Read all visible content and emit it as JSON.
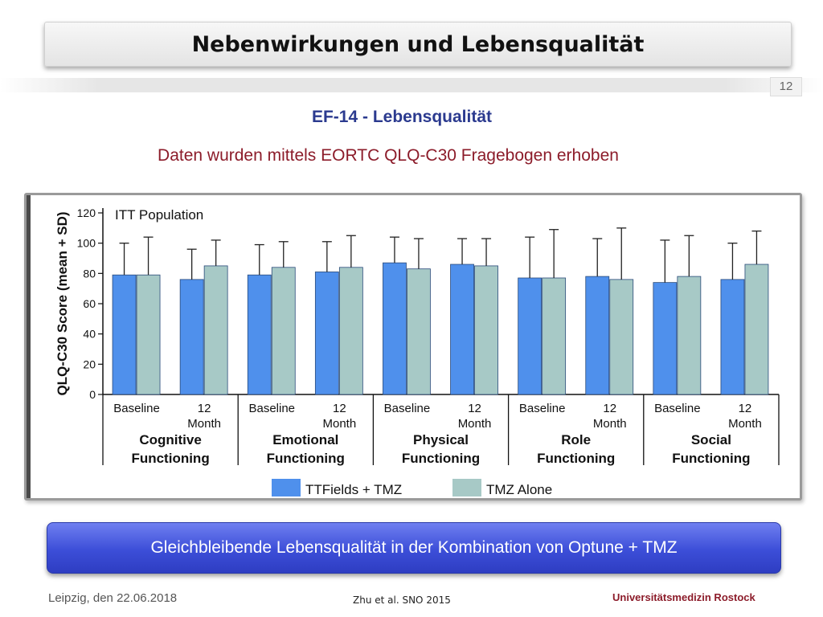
{
  "slide": {
    "title": "Nebenwirkungen und Lebensqualität",
    "page_number": "12",
    "subtitle": "EF-14 - Lebensqualität",
    "description": "Daten wurden mittels EORTC QLQ-C30 Fragebogen erhoben",
    "conclusion": "Gleichbleibende Lebensqualität in der Kombination von Optune + TMZ",
    "footer_left": "Leipzig, den 22.06.2018",
    "footer_center": "Zhu et al. SNO 2015",
    "footer_right": "Universitätsmedizin Rostock"
  },
  "colors": {
    "title_text": "#111111",
    "subtitle": "#2b3a8f",
    "description": "#8c1c2a",
    "conclusion_bg": "#3c4ed8",
    "series_ttfields": "#4f90ec",
    "series_tmz": "#a7c9c6"
  },
  "chart_data": {
    "type": "bar",
    "title": "ITT Population",
    "ylabel": "QLQ-C30 Score (mean + SD)",
    "ylim": [
      0,
      120
    ],
    "yticks": [
      0,
      20,
      40,
      60,
      80,
      100,
      120
    ],
    "grid": false,
    "error_bars": "mean + SD",
    "groups": [
      {
        "label": [
          "Cognitive",
          "Functioning"
        ],
        "categories": [
          [
            "Baseline"
          ],
          [
            "12",
            "Month"
          ]
        ]
      },
      {
        "label": [
          "Emotional",
          "Functioning"
        ],
        "categories": [
          [
            "Baseline"
          ],
          [
            "12",
            "Month"
          ]
        ]
      },
      {
        "label": [
          "Physical",
          "Functioning"
        ],
        "categories": [
          [
            "Baseline"
          ],
          [
            "12",
            "Month"
          ]
        ]
      },
      {
        "label": [
          "Role",
          "Functioning"
        ],
        "categories": [
          [
            "Baseline"
          ],
          [
            "12",
            "Month"
          ]
        ]
      },
      {
        "label": [
          "Social",
          "Functioning"
        ],
        "categories": [
          [
            "Baseline"
          ],
          [
            "12",
            "Month"
          ]
        ]
      }
    ],
    "series": [
      {
        "name": "TTFields + TMZ",
        "color": "#4f90ec",
        "values": [
          79,
          76,
          79,
          81,
          87,
          86,
          77,
          78,
          74,
          76
        ],
        "error_tops": [
          100,
          96,
          99,
          101,
          104,
          103,
          104,
          103,
          102,
          100
        ]
      },
      {
        "name": "TMZ Alone",
        "color": "#a7c9c6",
        "values": [
          79,
          85,
          84,
          84,
          83,
          85,
          77,
          76,
          78,
          86
        ],
        "error_tops": [
          104,
          102,
          101,
          105,
          103,
          103,
          109,
          110,
          105,
          108
        ]
      }
    ],
    "legend_position": "bottom"
  }
}
